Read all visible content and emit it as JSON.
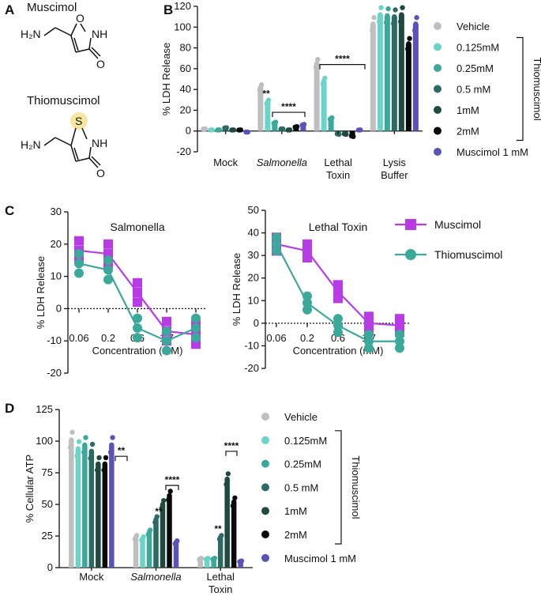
{
  "panel_letters": {
    "a": "A",
    "b": "B",
    "c": "C",
    "d": "D"
  },
  "structures": {
    "muscimol_name": "Muscimol",
    "thiomuscimol_name": "Thiomuscimol",
    "nh2": "H₂N",
    "nh": "NH",
    "o_ring": "O",
    "o_keto": "O",
    "s_ring": "S"
  },
  "colors": {
    "vehicle": "#bfbfbf",
    "c0125": "#6cd3c9",
    "c025": "#3aa99a",
    "c05": "#2d6b62",
    "c1": "#1e4a40",
    "c2": "#0a0a0a",
    "muscimol": "#5a52b8",
    "muscimol_line": "#b83ce6",
    "thio_line": "#3aa99a",
    "sulfur": "#f5e6a0"
  },
  "legend": {
    "items": [
      "Vehicle",
      "0.125mM",
      "0.25mM",
      "0.5 mM",
      "1mM",
      "2mM",
      "Muscimol 1 mM"
    ],
    "thio_bracket": "Thiomuscimol"
  },
  "chart_data": [
    {
      "id": "B",
      "type": "bar",
      "ylabel": "% LDH Release",
      "ylim": [
        -20,
        120
      ],
      "yticks": [
        -20,
        0,
        20,
        40,
        60,
        80,
        100,
        120
      ],
      "categories": [
        "Mock",
        "Salmonella",
        "Lethal Toxin",
        "Lysis Buffer"
      ],
      "category_labels": [
        [
          "Mock"
        ],
        [
          "Salmonella"
        ],
        [
          "Lethal",
          "Toxin"
        ],
        [
          "Lysis",
          "Buffer"
        ]
      ],
      "series": [
        {
          "name": "Vehicle",
          "values": [
            2,
            42,
            65,
            103
          ]
        },
        {
          "name": "0.125mM",
          "values": [
            1,
            28,
            48,
            112
          ]
        },
        {
          "name": "0.25mM",
          "values": [
            1,
            8,
            12,
            111
          ]
        },
        {
          "name": "0.5 mM",
          "values": [
            3,
            2,
            -3,
            110
          ]
        },
        {
          "name": "1mM",
          "values": [
            1,
            1,
            -3,
            112
          ]
        },
        {
          "name": "2mM",
          "values": [
            1,
            4,
            -5,
            84
          ]
        },
        {
          "name": "Muscimol 1 mM",
          "values": [
            -1,
            6,
            1,
            103
          ]
        }
      ],
      "significance": [
        "**",
        "****",
        "****"
      ]
    },
    {
      "id": "C1",
      "type": "line",
      "title": "Salmonella",
      "xlabel": "Concentration (mM)",
      "ylabel": "% LDH Release",
      "x": [
        "0.06",
        "0.2",
        "0.6",
        "1.7",
        "5"
      ],
      "ylim": [
        -20,
        30
      ],
      "yticks": [
        -20,
        -10,
        0,
        10,
        20,
        30
      ],
      "series": [
        {
          "name": "Muscimol",
          "values": [
            18,
            17,
            5,
            -7,
            -8
          ]
        },
        {
          "name": "Thiomuscimol",
          "values": [
            14,
            12,
            -6,
            -10,
            -6
          ]
        }
      ]
    },
    {
      "id": "C2",
      "type": "line",
      "title": "Lethal Toxin",
      "xlabel": "Concentration (mM)",
      "ylabel": "% LDH Release",
      "x": [
        "0.06",
        "0.2",
        "0.6",
        "1.7",
        "5"
      ],
      "ylim": [
        -20,
        50
      ],
      "yticks": [
        -20,
        -10,
        0,
        10,
        20,
        30,
        40,
        50
      ],
      "series": [
        {
          "name": "Muscimol",
          "values": [
            35,
            32,
            14,
            0,
            -1
          ]
        },
        {
          "name": "Thiomuscimol",
          "values": [
            35,
            9,
            -1,
            -8,
            -8
          ]
        }
      ]
    },
    {
      "id": "D",
      "type": "bar",
      "ylabel": "% Cellular ATP",
      "ylim": [
        0,
        125
      ],
      "yticks": [
        0,
        25,
        50,
        75,
        100,
        125
      ],
      "categories": [
        "Mock",
        "Salmonella",
        "Lethal Toxin"
      ],
      "category_labels": [
        [
          "Mock"
        ],
        [
          "Salmonella"
        ],
        [
          "Lethal",
          "Toxin"
        ]
      ],
      "series": [
        {
          "name": "Vehicle",
          "values": [
            101,
            24,
            7
          ]
        },
        {
          "name": "0.125mM",
          "values": [
            94,
            23,
            7
          ]
        },
        {
          "name": "0.25mM",
          "values": [
            97,
            28,
            7
          ]
        },
        {
          "name": "0.5 mM",
          "values": [
            92,
            38,
            24
          ]
        },
        {
          "name": "1mM",
          "values": [
            82,
            50,
            70
          ]
        },
        {
          "name": "2mM",
          "values": [
            82,
            57,
            52
          ]
        },
        {
          "name": "Muscimol 1 mM",
          "values": [
            97,
            20,
            5
          ]
        }
      ],
      "significance": [
        "**",
        "****",
        "**",
        "****"
      ]
    }
  ],
  "c_legend": {
    "muscimol": "Muscimol",
    "thiomuscimol": "Thiomuscimol"
  }
}
